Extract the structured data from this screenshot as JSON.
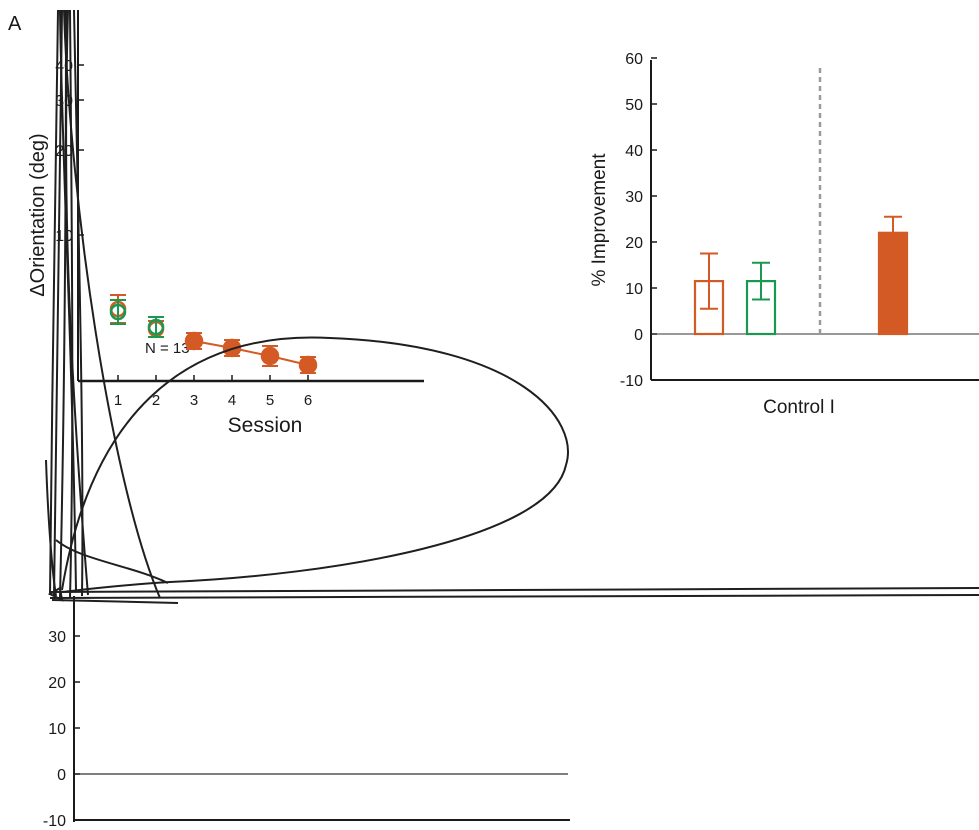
{
  "panel_label": "A",
  "chart_data": [
    {
      "type": "scatter",
      "panel": "A-left",
      "xlabel": "Session",
      "ylabel": "ΔOrientation (deg)",
      "annotation": "N = 13",
      "x_ticks": [
        1,
        2,
        3,
        4,
        5,
        6
      ],
      "y_ticks": [
        10,
        20,
        30,
        40
      ],
      "series": [
        {
          "color": "#d35a24",
          "marker": "open-circle",
          "points": [
            {
              "x": 1,
              "err": 7
            },
            {
              "x": 2,
              "err": 4
            }
          ]
        },
        {
          "color": "#1a9850",
          "marker": "open-circle",
          "points": [
            {
              "x": 1,
              "err": 6
            },
            {
              "x": 2,
              "err": 5
            }
          ]
        },
        {
          "color": "#d35a24",
          "marker": "filled-circle",
          "connected": true,
          "points": [
            {
              "x": 3,
              "err": 4
            },
            {
              "x": 4,
              "err": 4
            },
            {
              "x": 5,
              "err": 5
            },
            {
              "x": 6,
              "err": 4
            }
          ]
        }
      ]
    },
    {
      "type": "bar",
      "panel": "A-right",
      "xlabel": "Control I",
      "ylabel": "% Improvement",
      "ylim": [
        -10,
        60
      ],
      "y_ticks": [
        -10,
        0,
        10,
        20,
        30,
        40,
        50,
        60
      ],
      "bars": [
        {
          "value": 11.5,
          "err_low": 6,
          "err_high": 6,
          "color": "#d35a24",
          "filled": false
        },
        {
          "value": 11.5,
          "err_low": 4,
          "err_high": 4,
          "color": "#1a9850",
          "filled": false
        },
        {
          "value": 22,
          "err_low": 0,
          "err_high": 3.5,
          "color": "#d35a24",
          "filled": true
        }
      ],
      "divider": "dashed-grey-between-groups"
    },
    {
      "type": "bar",
      "panel": "A-bottom",
      "y_ticks": [
        -10,
        0,
        10,
        20,
        30
      ],
      "bars": []
    }
  ]
}
